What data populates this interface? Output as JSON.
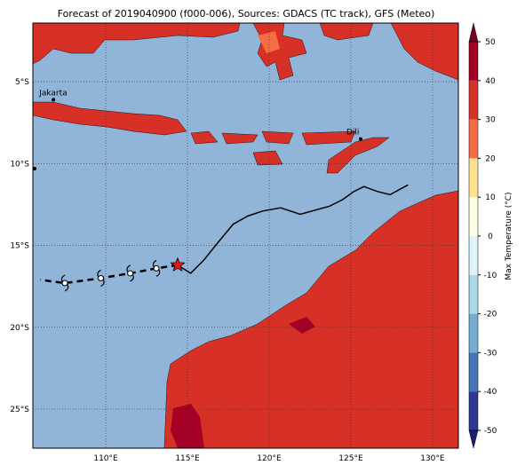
{
  "map": {
    "title": "Forecast of 2019040900 (f000-006), Sources: GDACS (TC track), GFS (Meteo)",
    "xlim": [
      105.54,
      131.58
    ],
    "ylim": [
      -27.38,
      -1.42
    ],
    "xticks": [
      {
        "value": 110,
        "label": "110°E"
      },
      {
        "value": 115,
        "label": "115°E"
      },
      {
        "value": 120,
        "label": "120°E"
      },
      {
        "value": 125,
        "label": "125°E"
      },
      {
        "value": 130,
        "label": "130°E"
      }
    ],
    "yticks": [
      {
        "value": -5,
        "label": "5°S"
      },
      {
        "value": -10,
        "label": "10°S"
      },
      {
        "value": -15,
        "label": "15°S"
      },
      {
        "value": -20,
        "label": "20°S"
      },
      {
        "value": -25,
        "label": "25°S"
      }
    ],
    "grid": true,
    "cities": [
      {
        "name": "Jakarta",
        "lon": 106.8,
        "lat": -6.1
      },
      {
        "name": "Dili",
        "lon": 125.6,
        "lat": -8.5
      }
    ],
    "track": {
      "lon": [
        128.5,
        127.4,
        126.6,
        125.8,
        125.2,
        124.5,
        123.7,
        121.9,
        120.7,
        119.6,
        118.7,
        117.8,
        116.8,
        116.0,
        115.2,
        114.4
      ],
      "lat": [
        -11.3,
        -11.9,
        -11.7,
        -11.4,
        -11.7,
        -12.2,
        -12.6,
        -13.1,
        -12.7,
        -12.9,
        -13.2,
        -13.7,
        -14.9,
        -15.9,
        -16.7,
        -16.2
      ],
      "color": "#000000"
    },
    "forecast": {
      "lon": [
        114.4,
        113.1,
        111.5,
        109.7,
        107.5,
        106.0
      ],
      "lat": [
        -16.2,
        -16.4,
        -16.7,
        -17.0,
        -17.3,
        -17.1
      ],
      "color": "#000000"
    },
    "current": {
      "lon": 114.4,
      "lat": -16.2,
      "color": "#e8141c"
    },
    "colorbar": {
      "label": "Max Temperature (°C)",
      "lim": [
        -50,
        50
      ],
      "ticks": [
        50,
        40,
        30,
        20,
        10,
        0,
        -10,
        -20,
        -30,
        -40,
        -50
      ],
      "levels": [
        -50,
        -40,
        -30,
        -20,
        -10,
        0,
        10,
        20,
        30,
        40,
        50
      ],
      "colors": [
        "#313695",
        "#4575b4",
        "#74add1",
        "#abd9e9",
        "#e0f3f8",
        "#ffffe5",
        "#fee090",
        "#f46d43",
        "#d73027",
        "#a50026"
      ],
      "under": "#1f1d72",
      "over": "#7a0022"
    }
  }
}
